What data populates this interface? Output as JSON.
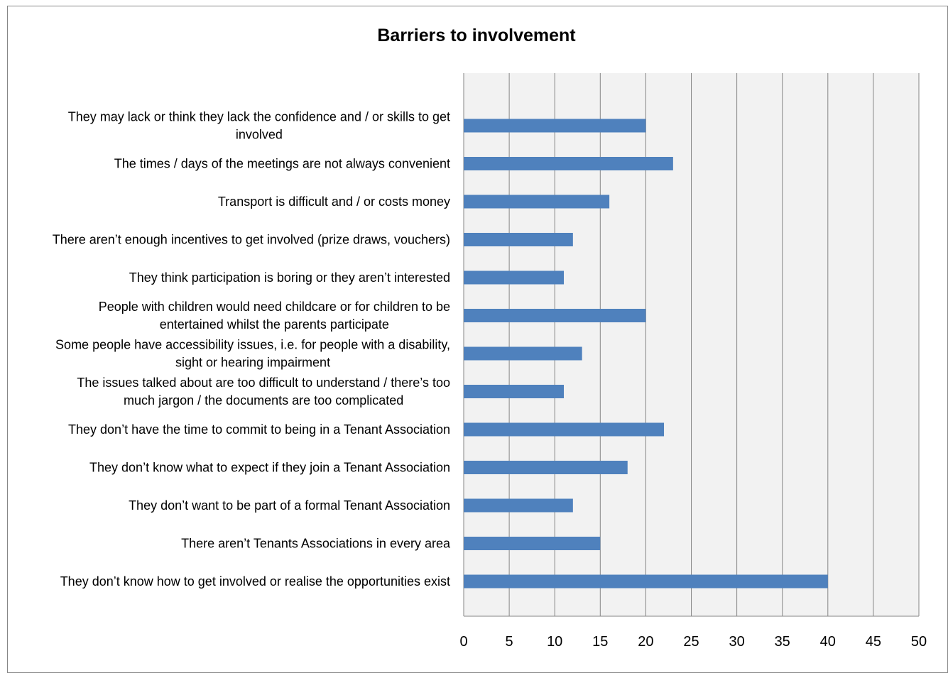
{
  "chart_data": {
    "type": "bar",
    "orientation": "horizontal",
    "title": "Barriers to involvement",
    "xlabel": "",
    "ylabel": "",
    "xlim": [
      0,
      50
    ],
    "x_ticks": [
      0,
      5,
      10,
      15,
      20,
      25,
      30,
      35,
      40,
      45,
      50
    ],
    "grid": true,
    "legend": "none",
    "bar_color": "#4F81BD",
    "plot_background": "#F2F2F2",
    "gridline_color": "#868686",
    "categories": [
      [
        "They may lack or think they lack the confidence and / or skills to get",
        "involved"
      ],
      [
        "The times / days of the meetings are not always convenient"
      ],
      [
        "Transport is difficult and / or costs money"
      ],
      [
        "There aren’t enough incentives to get involved (prize draws, vouchers)"
      ],
      [
        "They think participation is boring or they aren’t interested"
      ],
      [
        "People with children would need childcare or for children to be",
        "entertained whilst the parents participate"
      ],
      [
        "Some people have accessibility issues, i.e. for people with a disability,",
        "sight or hearing impairment"
      ],
      [
        "The issues talked about are too difficult to understand / there’s too",
        "much jargon / the documents are too complicated"
      ],
      [
        "They don’t have the time to commit to being in a Tenant Association"
      ],
      [
        "They don’t know what to expect if they join a Tenant Association"
      ],
      [
        "They don’t want to be part of a formal Tenant Association"
      ],
      [
        "There aren’t Tenants Associations in every area"
      ],
      [
        "They don’t know how to get involved or realise the opportunities exist"
      ]
    ],
    "values": [
      20,
      23,
      16,
      12,
      11,
      20,
      13,
      11,
      22,
      18,
      12,
      15,
      40
    ]
  }
}
